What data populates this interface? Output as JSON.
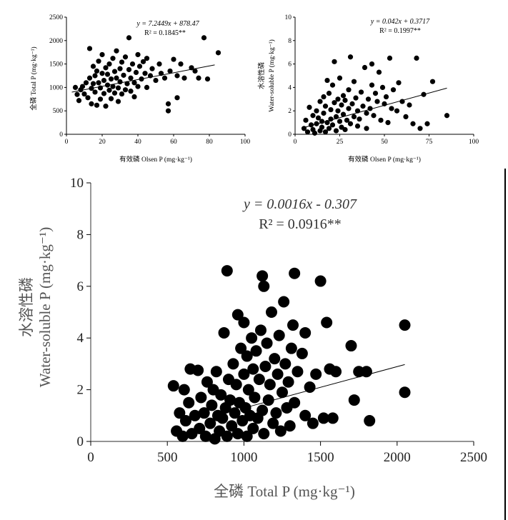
{
  "chart_data": [
    {
      "id": "panel-a",
      "type": "scatter",
      "xlabel": "有效磷 Olsen P (mg·kg⁻¹)",
      "ylabel": "全磷 Total P (mg·kg⁻¹)",
      "xlim": [
        0,
        100
      ],
      "ylim": [
        0,
        2500
      ],
      "xticks": [
        0,
        20,
        40,
        60,
        80,
        100
      ],
      "yticks": [
        0,
        500,
        1000,
        1500,
        2000,
        2500
      ],
      "equation": "y = 7.2449x + 878.47",
      "r2": "R² = 0.1845**",
      "fit": {
        "slope": 7.2449,
        "intercept": 878.47,
        "x_range": [
          3,
          83
        ]
      },
      "points": [
        [
          5,
          1000
        ],
        [
          6,
          850
        ],
        [
          7,
          720
        ],
        [
          8,
          950
        ],
        [
          9,
          1020
        ],
        [
          10,
          860
        ],
        [
          11,
          1100
        ],
        [
          12,
          780
        ],
        [
          13,
          1200
        ],
        [
          13,
          1830
        ],
        [
          14,
          650
        ],
        [
          14,
          980
        ],
        [
          15,
          1450
        ],
        [
          15,
          1080
        ],
        [
          16,
          900
        ],
        [
          16,
          1250
        ],
        [
          17,
          620
        ],
        [
          17,
          1350
        ],
        [
          18,
          1100
        ],
        [
          18,
          1560
        ],
        [
          19,
          750
        ],
        [
          19,
          990
        ],
        [
          20,
          1300
        ],
        [
          20,
          1700
        ],
        [
          21,
          870
        ],
        [
          21,
          1150
        ],
        [
          22,
          1420
        ],
        [
          22,
          600
        ],
        [
          23,
          1050
        ],
        [
          23,
          1280
        ],
        [
          24,
          940
        ],
        [
          24,
          1500
        ],
        [
          25,
          1180
        ],
        [
          25,
          760
        ],
        [
          26,
          1620
        ],
        [
          26,
          1020
        ],
        [
          27,
          880
        ],
        [
          27,
          1340
        ],
        [
          28,
          1200
        ],
        [
          28,
          1780
        ],
        [
          29,
          990
        ],
        [
          29,
          700
        ],
        [
          30,
          1400
        ],
        [
          30,
          1120
        ],
        [
          31,
          860
        ],
        [
          31,
          1540
        ],
        [
          32,
          1260
        ],
        [
          33,
          950
        ],
        [
          33,
          1650
        ],
        [
          34,
          1080
        ],
        [
          35,
          1380
        ],
        [
          35,
          2060
        ],
        [
          36,
          920
        ],
        [
          36,
          1200
        ],
        [
          37,
          1500
        ],
        [
          38,
          1100
        ],
        [
          38,
          800
        ],
        [
          39,
          1320
        ],
        [
          40,
          1700
        ],
        [
          40,
          1020
        ],
        [
          41,
          1450
        ],
        [
          42,
          1180
        ],
        [
          43,
          1550
        ],
        [
          44,
          1300
        ],
        [
          45,
          1620
        ],
        [
          45,
          1000
        ],
        [
          47,
          1250
        ],
        [
          48,
          1400
        ],
        [
          50,
          1150
        ],
        [
          52,
          1500
        ],
        [
          53,
          1300
        ],
        [
          55,
          1200
        ],
        [
          57,
          500
        ],
        [
          57,
          650
        ],
        [
          58,
          1350
        ],
        [
          60,
          1600
        ],
        [
          62,
          780
        ],
        [
          62,
          1250
        ],
        [
          64,
          1500
        ],
        [
          66,
          1200
        ],
        [
          70,
          1420
        ],
        [
          72,
          1350
        ],
        [
          74,
          1200
        ],
        [
          77,
          2060
        ],
        [
          79,
          1180
        ],
        [
          85,
          1740
        ]
      ]
    },
    {
      "id": "panel-b",
      "type": "scatter",
      "xlabel": "有效磷 Olsen P (mg·kg⁻¹)",
      "ylabel_cn": "水溶性磷",
      "ylabel": "Water-soluble P (mg·kg⁻¹)",
      "xlim": [
        0,
        100
      ],
      "ylim": [
        0,
        10
      ],
      "xticks": [
        0,
        25,
        50,
        75,
        100
      ],
      "yticks": [
        0,
        2,
        4,
        6,
        8,
        10
      ],
      "equation": "y = 0.042x + 0.3717",
      "r2": "R² = 0.1997**",
      "fit": {
        "slope": 0.042,
        "intercept": 0.3717,
        "x_range": [
          5,
          85
        ]
      },
      "points": [
        [
          5,
          0.5
        ],
        [
          6,
          1.2
        ],
        [
          7,
          0.2
        ],
        [
          8,
          2.3
        ],
        [
          9,
          0.8
        ],
        [
          10,
          0.4
        ],
        [
          10,
          1.6
        ],
        [
          11,
          0.1
        ],
        [
          12,
          2.0
        ],
        [
          12,
          0.9
        ],
        [
          13,
          1.4
        ],
        [
          14,
          0.3
        ],
        [
          14,
          2.8
        ],
        [
          15,
          1.1
        ],
        [
          15,
          0.6
        ],
        [
          16,
          3.2
        ],
        [
          16,
          1.8
        ],
        [
          17,
          0.2
        ],
        [
          17,
          2.4
        ],
        [
          18,
          4.6
        ],
        [
          18,
          1.0
        ],
        [
          19,
          0.5
        ],
        [
          19,
          3.5
        ],
        [
          20,
          2.1
        ],
        [
          20,
          1.3
        ],
        [
          21,
          4.2
        ],
        [
          21,
          0.8
        ],
        [
          22,
          6.2
        ],
        [
          22,
          2.7
        ],
        [
          23,
          1.5
        ],
        [
          23,
          0.3
        ],
        [
          24,
          3.0
        ],
        [
          24,
          2.0
        ],
        [
          25,
          1.1
        ],
        [
          25,
          4.8
        ],
        [
          26,
          0.6
        ],
        [
          26,
          2.5
        ],
        [
          27,
          3.3
        ],
        [
          27,
          1.7
        ],
        [
          28,
          0.4
        ],
        [
          28,
          2.9
        ],
        [
          29,
          1.2
        ],
        [
          30,
          3.8
        ],
        [
          30,
          2.2
        ],
        [
          31,
          6.6
        ],
        [
          31,
          0.9
        ],
        [
          32,
          2.6
        ],
        [
          33,
          1.5
        ],
        [
          33,
          4.5
        ],
        [
          34,
          3.1
        ],
        [
          35,
          0.7
        ],
        [
          35,
          2.0
        ],
        [
          36,
          1.3
        ],
        [
          37,
          3.6
        ],
        [
          38,
          2.4
        ],
        [
          39,
          5.7
        ],
        [
          40,
          1.8
        ],
        [
          40,
          0.5
        ],
        [
          41,
          3.0
        ],
        [
          42,
          2.2
        ],
        [
          43,
          6.0
        ],
        [
          43,
          4.2
        ],
        [
          44,
          1.6
        ],
        [
          45,
          3.5
        ],
        [
          46,
          2.8
        ],
        [
          47,
          5.3
        ],
        [
          48,
          1.2
        ],
        [
          49,
          4.0
        ],
        [
          50,
          2.6
        ],
        [
          51,
          3.2
        ],
        [
          52,
          1.0
        ],
        [
          53,
          6.5
        ],
        [
          54,
          2.2
        ],
        [
          55,
          3.8
        ],
        [
          57,
          2.0
        ],
        [
          58,
          4.4
        ],
        [
          60,
          2.8
        ],
        [
          62,
          1.5
        ],
        [
          64,
          2.5
        ],
        [
          66,
          0.9
        ],
        [
          68,
          6.5
        ],
        [
          70,
          0.5
        ],
        [
          72,
          3.4
        ],
        [
          74,
          0.9
        ],
        [
          77,
          4.5
        ],
        [
          85,
          1.6
        ]
      ]
    },
    {
      "id": "panel-c",
      "type": "scatter",
      "xlabel": "全磷 Total P (mg·kg⁻¹)",
      "ylabel_cn": "水溶性磷",
      "ylabel": "Water-soluble P (mg·kg⁻¹)",
      "xlim": [
        0,
        2500
      ],
      "ylim": [
        0,
        10
      ],
      "xticks": [
        0,
        500,
        1000,
        1500,
        2000,
        2500
      ],
      "yticks": [
        0,
        2,
        4,
        6,
        8,
        10
      ],
      "equation": "y = 0.0016x - 0.307",
      "r2": "R² = 0.0916**",
      "fit": {
        "slope": 0.0016,
        "intercept": -0.307,
        "x_range": [
          1000,
          2050
        ]
      },
      "points": [
        [
          540,
          2.15
        ],
        [
          560,
          0.4
        ],
        [
          580,
          1.1
        ],
        [
          600,
          0.2
        ],
        [
          610,
          2.0
        ],
        [
          620,
          0.8
        ],
        [
          640,
          1.5
        ],
        [
          650,
          2.8
        ],
        [
          660,
          0.3
        ],
        [
          680,
          1.0
        ],
        [
          700,
          2.75
        ],
        [
          710,
          0.5
        ],
        [
          720,
          1.7
        ],
        [
          740,
          1.1
        ],
        [
          750,
          0.2
        ],
        [
          760,
          2.3
        ],
        [
          780,
          0.7
        ],
        [
          790,
          1.4
        ],
        [
          800,
          2.0
        ],
        [
          810,
          0.1
        ],
        [
          820,
          2.7
        ],
        [
          830,
          1.0
        ],
        [
          840,
          0.4
        ],
        [
          850,
          1.8
        ],
        [
          860,
          0.9
        ],
        [
          870,
          4.2
        ],
        [
          880,
          1.3
        ],
        [
          890,
          0.2
        ],
        [
          890,
          6.6
        ],
        [
          900,
          2.4
        ],
        [
          910,
          1.6
        ],
        [
          920,
          0.6
        ],
        [
          930,
          3.0
        ],
        [
          940,
          1.1
        ],
        [
          950,
          2.2
        ],
        [
          960,
          0.3
        ],
        [
          960,
          4.9
        ],
        [
          970,
          1.5
        ],
        [
          980,
          3.6
        ],
        [
          990,
          0.8
        ],
        [
          1000,
          2.6
        ],
        [
          1000,
          4.6
        ],
        [
          1010,
          1.3
        ],
        [
          1020,
          0.2
        ],
        [
          1020,
          3.3
        ],
        [
          1030,
          2.0
        ],
        [
          1040,
          1.0
        ],
        [
          1050,
          4.0
        ],
        [
          1060,
          0.5
        ],
        [
          1060,
          2.8
        ],
        [
          1070,
          1.7
        ],
        [
          1080,
          3.5
        ],
        [
          1090,
          0.9
        ],
        [
          1100,
          2.4
        ],
        [
          1110,
          4.3
        ],
        [
          1120,
          1.2
        ],
        [
          1120,
          6.4
        ],
        [
          1130,
          6.0
        ],
        [
          1130,
          0.3
        ],
        [
          1140,
          2.9
        ],
        [
          1150,
          3.8
        ],
        [
          1160,
          1.6
        ],
        [
          1170,
          2.2
        ],
        [
          1180,
          5.0
        ],
        [
          1190,
          0.7
        ],
        [
          1200,
          3.2
        ],
        [
          1210,
          1.1
        ],
        [
          1220,
          2.6
        ],
        [
          1230,
          4.1
        ],
        [
          1240,
          0.4
        ],
        [
          1250,
          1.9
        ],
        [
          1260,
          5.4
        ],
        [
          1270,
          3.0
        ],
        [
          1280,
          1.3
        ],
        [
          1290,
          2.3
        ],
        [
          1300,
          0.6
        ],
        [
          1310,
          3.6
        ],
        [
          1320,
          4.5
        ],
        [
          1330,
          1.5
        ],
        [
          1330,
          6.5
        ],
        [
          1350,
          2.7
        ],
        [
          1380,
          3.4
        ],
        [
          1400,
          1.0
        ],
        [
          1400,
          4.2
        ],
        [
          1430,
          2.1
        ],
        [
          1450,
          0.7
        ],
        [
          1470,
          2.6
        ],
        [
          1500,
          6.2
        ],
        [
          1520,
          0.9
        ],
        [
          1540,
          4.6
        ],
        [
          1560,
          2.8
        ],
        [
          1580,
          0.9
        ],
        [
          1600,
          2.7
        ],
        [
          1700,
          3.7
        ],
        [
          1720,
          1.6
        ],
        [
          1750,
          2.7
        ],
        [
          1800,
          2.7
        ],
        [
          1820,
          0.8
        ],
        [
          2050,
          4.5
        ],
        [
          2050,
          1.9
        ]
      ]
    }
  ]
}
